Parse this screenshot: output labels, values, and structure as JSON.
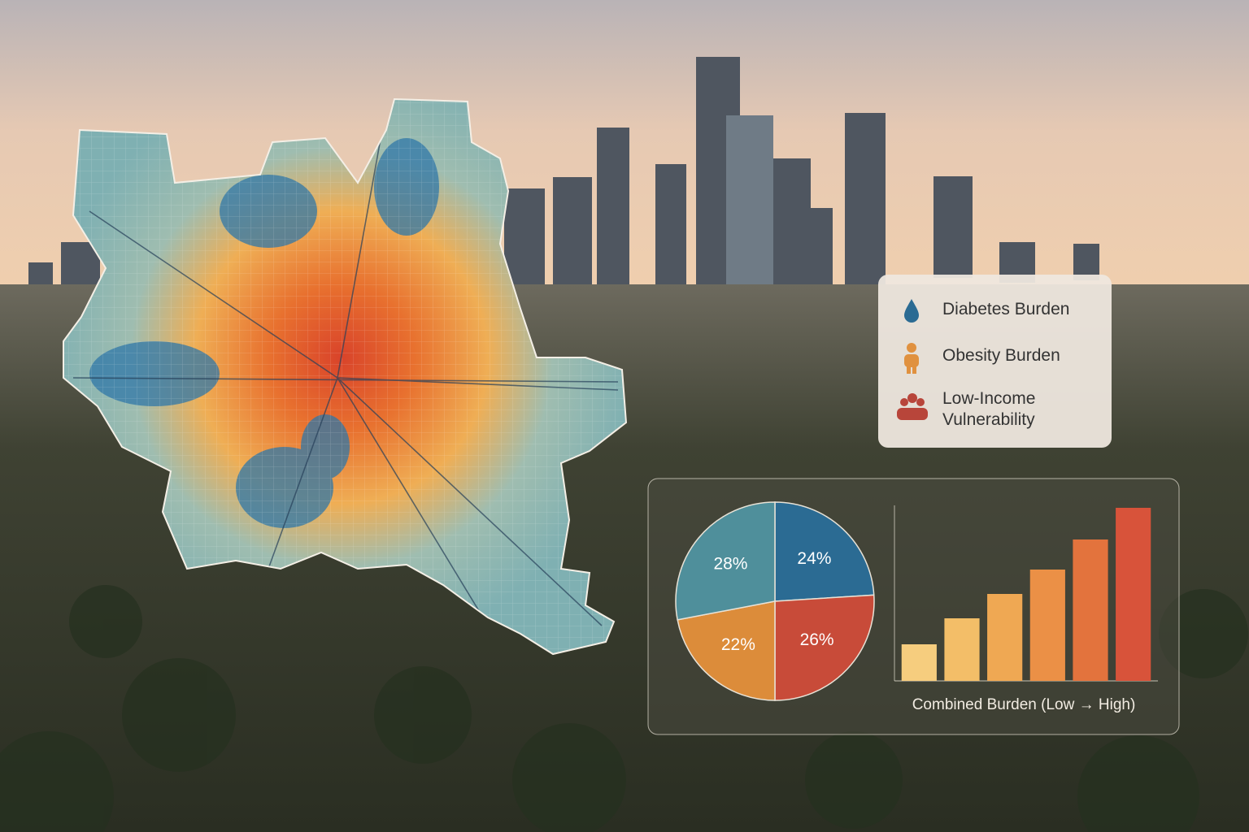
{
  "chart_data": [
    {
      "type": "pie",
      "values": [
        24,
        26,
        22,
        28
      ],
      "value_labels": [
        "24%",
        "26%",
        "22%",
        "28%"
      ],
      "colors": [
        "#2b6b93",
        "#c84b39",
        "#dc8c3a",
        "#4f8f9b"
      ]
    },
    {
      "type": "bar",
      "categories": [
        null,
        null,
        null,
        null,
        null,
        null
      ],
      "values": [
        45,
        77,
        107,
        137,
        174,
        213
      ],
      "colors": [
        "#f6cd7e",
        "#f3be68",
        "#efa853",
        "#eb9046",
        "#e3733d",
        "#d8533a"
      ],
      "ylim": [
        0,
        220
      ],
      "xlabel": "Combined Burden (Low → High)"
    }
  ],
  "legend": [
    "Diabetes Burden",
    "Obesity Burden",
    "Low-Income Vulnerability"
  ]
}
